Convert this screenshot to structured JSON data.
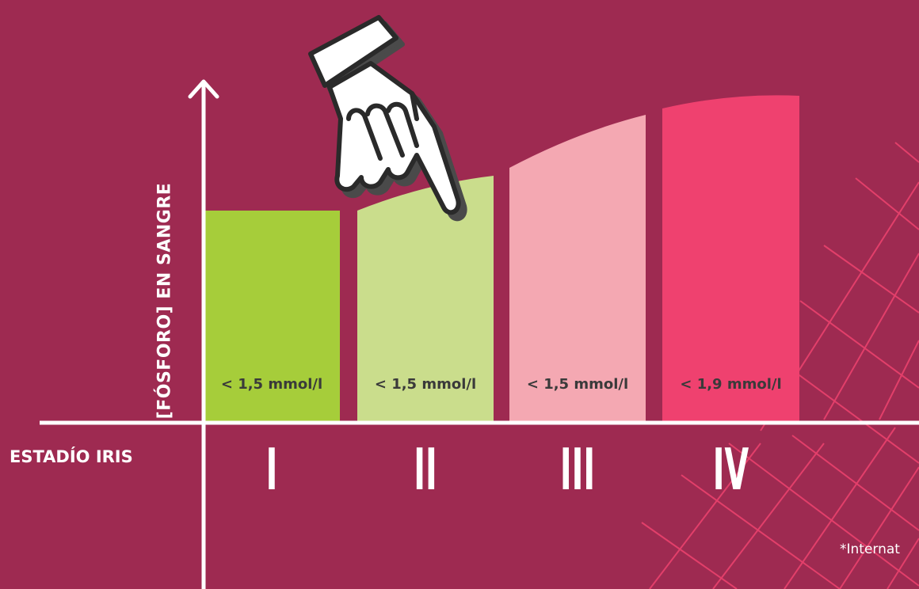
{
  "chart_data": {
    "type": "bar",
    "title": "",
    "ylabel": "[Fósforo] en sangre",
    "xlabel": "Estadío IRIS",
    "categories": [
      "I",
      "II",
      "III",
      "IV"
    ],
    "values": [
      1.5,
      1.5,
      1.5,
      1.9
    ],
    "data_labels": [
      "< 1,5 mmol/l",
      "< 1,5 mmol/l",
      "< 1,5 mmol/l",
      "< 1,9 mmol/l"
    ],
    "bar_colors": [
      "#a6cd3a",
      "#cadd8c",
      "#f4a8b2",
      "#ef416f"
    ],
    "grid": false,
    "legend": "none"
  },
  "footnote": "*Internat",
  "colors": {
    "background": "#9e2a51",
    "axis": "#ffffff",
    "grid_lines": "#e23f6a",
    "label_text": "#3a3a3a"
  },
  "icons": [
    "pointing-hand-icon",
    "axis-arrow-icon"
  ]
}
